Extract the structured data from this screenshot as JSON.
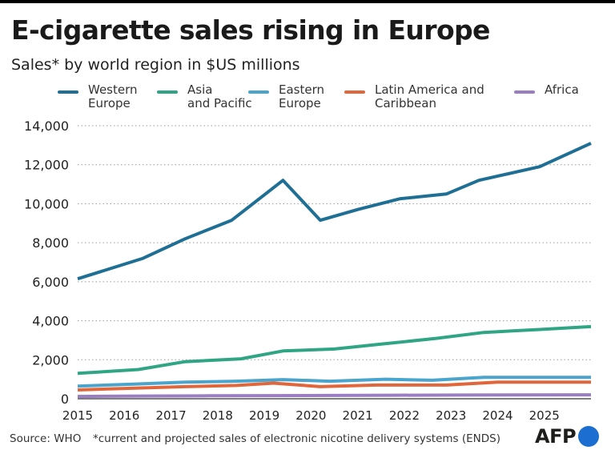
{
  "header": {
    "title": "E-cigarette sales rising in Europe",
    "subtitle": "Sales* by world region in $US millions"
  },
  "footer": {
    "source": "Source: WHO",
    "note": "*current and projected sales of electronic nicotine delivery systems (ENDS)",
    "logo_text": "AFP",
    "logo_color": "#1c6fd0"
  },
  "chart_data": {
    "type": "line",
    "title": "E-cigarette sales rising in Europe",
    "subtitle": "Sales* by world region in $US millions",
    "x": [
      2015,
      2016,
      2017,
      2018,
      2019,
      2020,
      2021,
      2022,
      2023,
      2024,
      2025
    ],
    "xticks": [
      "2015",
      "2016",
      "2017",
      "2018",
      "2019",
      "2020",
      "2021",
      "2022",
      "2023",
      "2024",
      "2025"
    ],
    "xlim": [
      2015,
      2026
    ],
    "ylim": [
      0,
      14000
    ],
    "yticks": [
      0,
      2000,
      4000,
      6000,
      8000,
      10000,
      12000,
      14000
    ],
    "ytick_labels": [
      "0",
      "2,000",
      "4,000",
      "6,000",
      "8,000",
      "10,000",
      "12,000",
      "14,000"
    ],
    "grid": "horizontal-dotted",
    "legend_position": "top",
    "series": [
      {
        "name": "Western\nEurope",
        "color": "#1f6f95",
        "values": [
          6150,
          7200,
          8200,
          9150,
          11200,
          9150,
          9700,
          10250,
          10500,
          11200,
          11900,
          13100
        ],
        "x": [
          2015,
          2016.4,
          2017.3,
          2018.3,
          2019.4,
          2020.2,
          2021,
          2021.9,
          2022.9,
          2023.6,
          2024.9,
          2026
        ]
      },
      {
        "name": "Asia\nand Pacific",
        "color": "#2fa585",
        "values": [
          1300,
          1500,
          1900,
          2050,
          2450,
          2550,
          2800,
          3100,
          3400,
          3550,
          3700
        ],
        "x": [
          2015,
          2016.3,
          2017.3,
          2018.5,
          2019.4,
          2020.5,
          2021.5,
          2022.7,
          2023.7,
          2024.9,
          2026
        ]
      },
      {
        "name": "Eastern\nEurope",
        "color": "#4aa4cc",
        "values": [
          650,
          750,
          850,
          900,
          980,
          900,
          1000,
          950,
          1100,
          1100
        ],
        "x": [
          2015,
          2016.2,
          2017.3,
          2018.4,
          2019.4,
          2020.4,
          2021.6,
          2022.6,
          2023.7,
          2026
        ]
      },
      {
        "name": "Latin America and\nCaribbean",
        "color": "#e0673c",
        "values": [
          450,
          550,
          620,
          680,
          800,
          620,
          700,
          700,
          850,
          850
        ],
        "x": [
          2015,
          2016.3,
          2017.3,
          2018.4,
          2019.2,
          2020.2,
          2021.4,
          2022.9,
          2024,
          2026
        ]
      },
      {
        "name": "Africa",
        "color": "#9b7dc2",
        "values": [
          120,
          140,
          150,
          160,
          170,
          180,
          190,
          200
        ],
        "x": [
          2015,
          2016.4,
          2017.8,
          2019.1,
          2020.4,
          2021.8,
          2023.2,
          2026
        ]
      }
    ]
  }
}
